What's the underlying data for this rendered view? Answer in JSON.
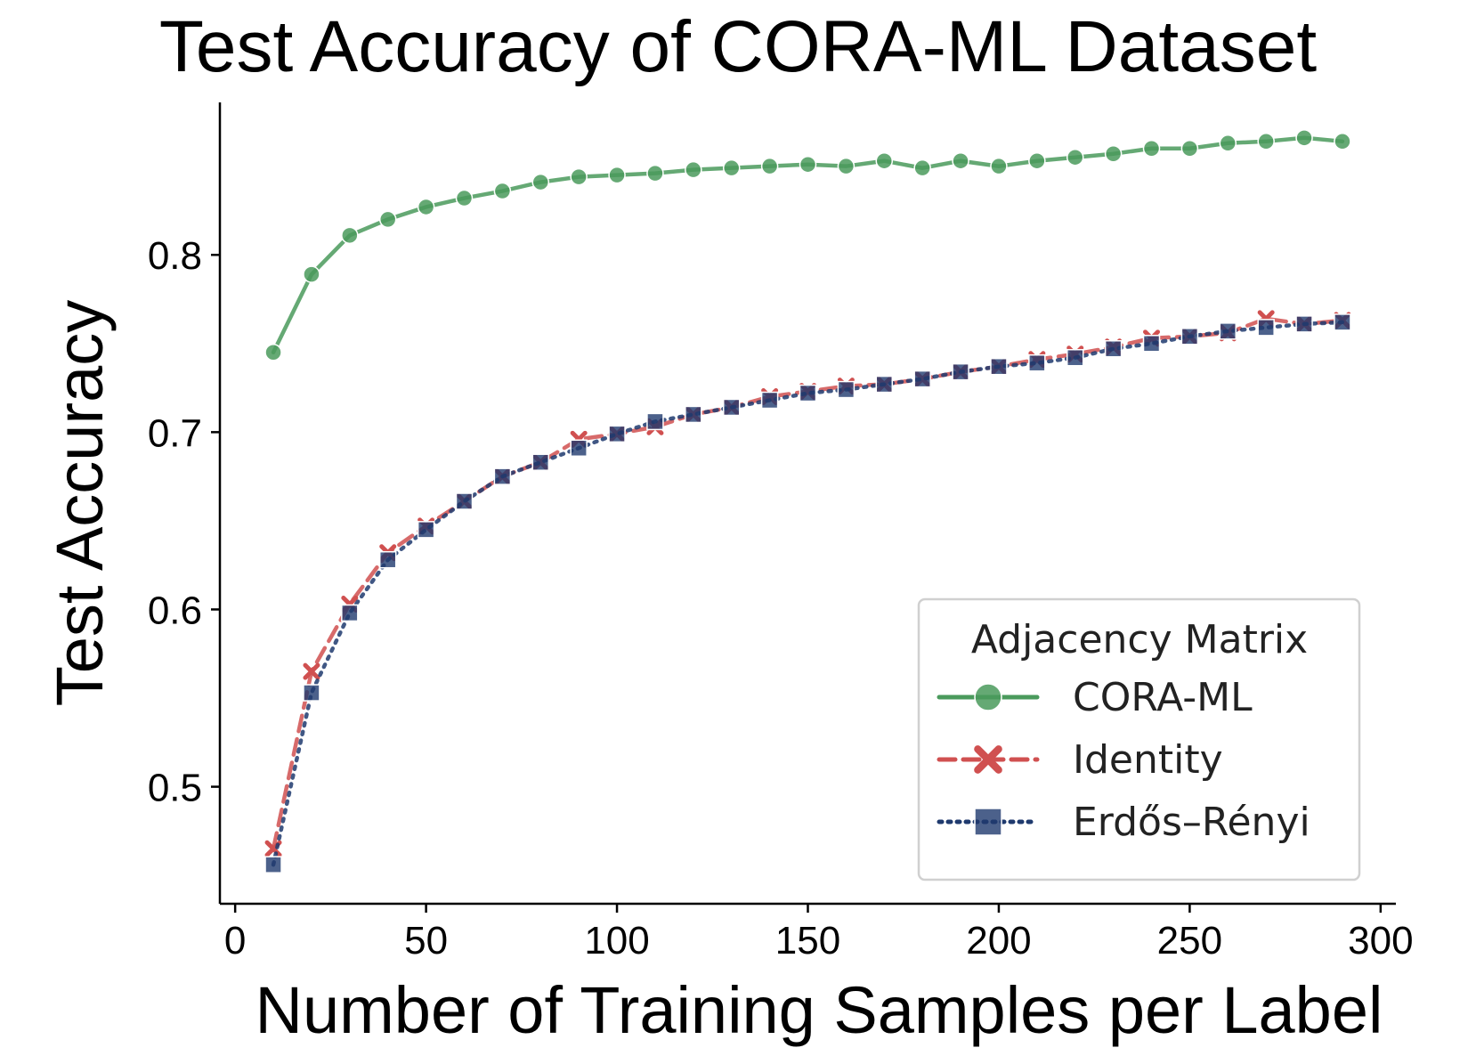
{
  "chart_data": {
    "type": "line",
    "title": "Test Accuracy of CORA-ML Dataset",
    "xlabel": "Number of Training Samples per Label",
    "ylabel": "Test Accuracy",
    "xlim": [
      -4,
      304
    ],
    "ylim": [
      0.434,
      0.886
    ],
    "xticks": [
      0,
      50,
      100,
      150,
      200,
      250,
      300
    ],
    "yticks": [
      0.5,
      0.6,
      0.7,
      0.8
    ],
    "ytick_labels": [
      "0.5",
      "0.6",
      "0.7",
      "0.8"
    ],
    "grid": false,
    "legend": {
      "title": "Adjacency Matrix",
      "placement": "lower-right"
    },
    "x": [
      10,
      20,
      30,
      40,
      50,
      60,
      70,
      80,
      90,
      100,
      110,
      120,
      130,
      140,
      150,
      160,
      170,
      180,
      190,
      200,
      210,
      220,
      230,
      240,
      250,
      260,
      270,
      280,
      290
    ],
    "series": [
      {
        "name": "CORA-ML",
        "color": "#4a9a5c",
        "line_style": "solid",
        "marker": "circle",
        "values": [
          0.745,
          0.789,
          0.811,
          0.82,
          0.827,
          0.832,
          0.836,
          0.841,
          0.844,
          0.845,
          0.846,
          0.848,
          0.849,
          0.85,
          0.851,
          0.85,
          0.853,
          0.849,
          0.853,
          0.85,
          0.853,
          0.855,
          0.857,
          0.86,
          0.86,
          0.863,
          0.864,
          0.866,
          0.864
        ]
      },
      {
        "name": "Identity",
        "color": "#d05050",
        "line_style": "dashed",
        "marker": "x",
        "values": [
          0.465,
          0.565,
          0.603,
          0.632,
          0.647,
          0.661,
          0.675,
          0.683,
          0.696,
          0.699,
          0.703,
          0.71,
          0.714,
          0.72,
          0.723,
          0.726,
          0.727,
          0.73,
          0.734,
          0.737,
          0.741,
          0.744,
          0.748,
          0.753,
          0.754,
          0.756,
          0.764,
          0.761,
          0.763
        ]
      },
      {
        "name": "Erdős–Rényi",
        "color": "#1f3a6e",
        "line_style": "dotted",
        "marker": "square",
        "values": [
          0.456,
          0.553,
          0.598,
          0.628,
          0.645,
          0.661,
          0.675,
          0.683,
          0.691,
          0.699,
          0.706,
          0.71,
          0.714,
          0.718,
          0.722,
          0.724,
          0.727,
          0.73,
          0.734,
          0.737,
          0.739,
          0.742,
          0.747,
          0.75,
          0.754,
          0.757,
          0.759,
          0.761,
          0.762
        ]
      }
    ]
  }
}
